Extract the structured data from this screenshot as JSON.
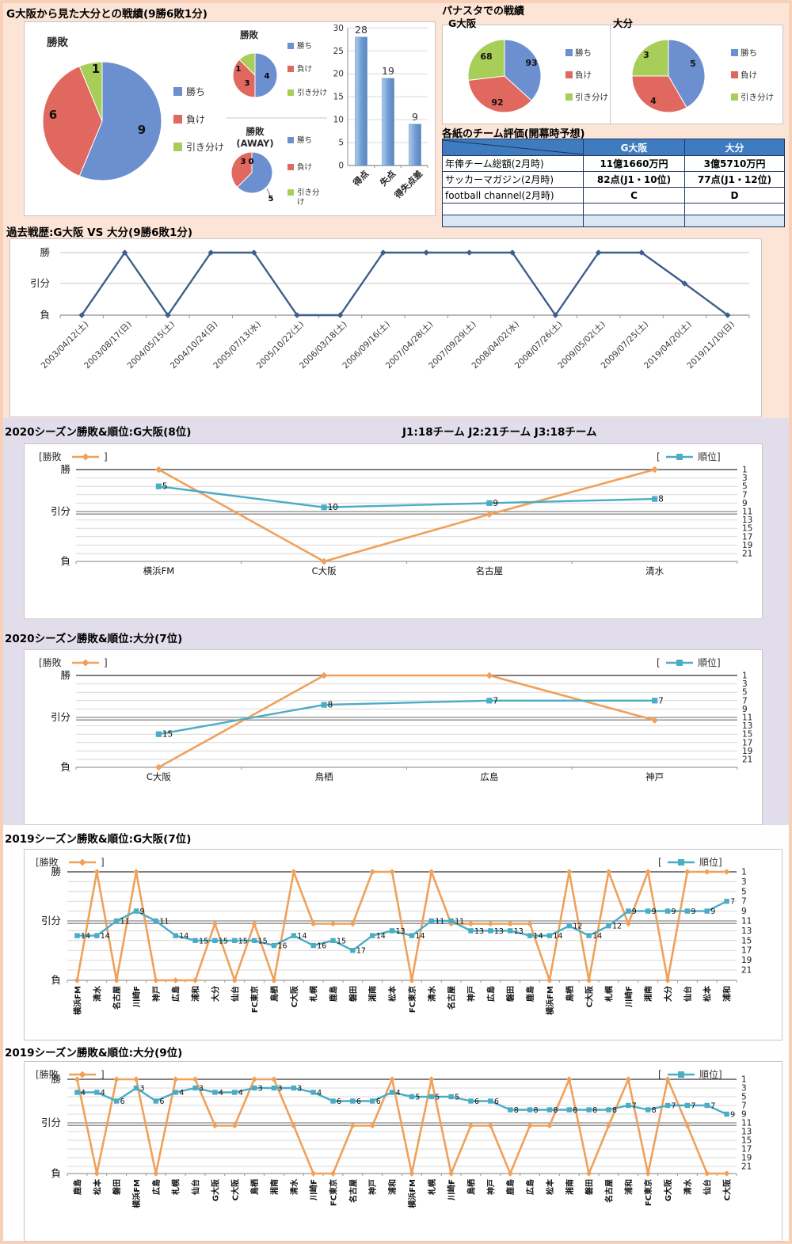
{
  "colors": {
    "pie_blue": "#6C8FD0",
    "pie_red": "#E0685F",
    "pie_green": "#A8CE5A",
    "bar_blue": "#6D9BD1",
    "bar_blue_light": "#AECBEC",
    "orange": "#EFA15B",
    "teal": "#4BACC6",
    "navy": "#3D5E8C",
    "table_header": "#3E7CBF",
    "table_row_tint": "#D9E7F5",
    "grid": "#D9D9D9",
    "grid_dark": "#7F7F7F",
    "bg_peach": "#FCE4D6",
    "bg_lavender": "#E2DDEA",
    "bg_white": "#FEFEFE",
    "frame": "#F7D0B7"
  },
  "sections": {
    "record_title": "G大阪から見た大分との戦績(9勝6敗1分)",
    "panasta_title": "パナスタでの戦績",
    "panasta_left": "G大阪",
    "panasta_right": "大分",
    "rank_ticks": [
      1,
      3,
      5,
      7,
      9,
      11,
      13,
      15,
      17,
      19,
      21
    ],
    "rank_left_labels": [
      "勝",
      "引分",
      "負"
    ]
  },
  "chart_data": [
    {
      "id": "pie_record_total",
      "type": "pie",
      "title": "勝敗",
      "labels": [
        "勝ち",
        "負け",
        "引き分け"
      ],
      "values": [
        9,
        6,
        1
      ]
    },
    {
      "id": "pie_record_home",
      "type": "pie",
      "title": "勝敗",
      "labels": [
        "勝ち",
        "負け",
        "引き分け"
      ],
      "values": [
        4,
        3,
        1
      ]
    },
    {
      "id": "pie_record_away",
      "type": "pie",
      "title": "勝敗(AWAY)",
      "title_lines": [
        "勝敗",
        "(AWAY)"
      ],
      "labels": [
        "勝ち",
        "負け",
        "引き分け"
      ],
      "values": [
        5,
        3,
        0
      ]
    },
    {
      "id": "bar_goals",
      "type": "bar",
      "categories": [
        "得点",
        "失点",
        "得失点差"
      ],
      "values": [
        28,
        19,
        9
      ],
      "ylim": [
        0,
        30
      ],
      "ystep": 5
    },
    {
      "id": "pie_panasta_gamba",
      "type": "pie",
      "team": "G大阪",
      "labels": [
        "勝ち",
        "負け",
        "引き分け"
      ],
      "values": [
        93,
        92,
        68
      ]
    },
    {
      "id": "pie_panasta_oita",
      "type": "pie",
      "team": "大分",
      "labels": [
        "勝ち",
        "負け",
        "引き分け"
      ],
      "values": [
        5,
        4,
        3
      ]
    },
    {
      "id": "eval_table",
      "type": "table",
      "title": "各紙のチーム評価(開幕時予想)",
      "columns": [
        "",
        "G大阪",
        "大分"
      ],
      "rows": [
        [
          "年俸チーム総額(2月時)",
          "11億1660万円",
          "3億5710万円"
        ],
        [
          "サッカーマガジン(2月時)",
          "82点(J1・10位)",
          "77点(J1・12位)"
        ],
        [
          "football channel(2月時)",
          "C",
          "D"
        ],
        [
          "",
          "",
          ""
        ],
        [
          "",
          "",
          ""
        ]
      ]
    },
    {
      "id": "history",
      "type": "line",
      "title": "過去戦歴:G大阪 VS 大分(9勝6敗1分)",
      "y_categories": [
        "勝",
        "引分",
        "負"
      ],
      "x": [
        "2003/04/12(土)",
        "2003/08/17(日)",
        "2004/05/15(土)",
        "2004/10/24(日)",
        "2005/07/13(水)",
        "2005/10/22(土)",
        "2006/03/18(土)",
        "2006/09/16(土)",
        "2007/04/28(土)",
        "2007/09/29(土)",
        "2008/04/02(水)",
        "2008/07/26(土)",
        "2009/05/02(土)",
        "2009/07/25(土)",
        "2019/04/20(土)",
        "2019/11/10(日)"
      ],
      "values": [
        "負",
        "勝",
        "負",
        "勝",
        "勝",
        "負",
        "負",
        "勝",
        "勝",
        "勝",
        "勝",
        "負",
        "勝",
        "勝",
        "引分",
        "負"
      ]
    },
    {
      "id": "rank_2020_gamba",
      "type": "line",
      "title": "2020シーズン勝敗&順位:G大阪(8位)",
      "note": "J1:18チーム  J2:21チーム  J3:18チーム",
      "legend": [
        "勝敗",
        "順位"
      ],
      "x": [
        "横浜FM",
        "C大阪",
        "名古屋",
        "清水"
      ],
      "series": [
        {
          "name": "勝敗",
          "values": [
            "勝",
            "負",
            "引分",
            "勝"
          ]
        },
        {
          "name": "順位",
          "values": [
            5,
            10,
            9,
            8
          ]
        }
      ],
      "right_axis_range": [
        1,
        21
      ]
    },
    {
      "id": "rank_2020_oita",
      "type": "line",
      "title": "2020シーズン勝敗&順位:大分(7位)",
      "legend": [
        "勝敗",
        "順位"
      ],
      "x": [
        "C大阪",
        "鳥栖",
        "広島",
        "神戸"
      ],
      "series": [
        {
          "name": "勝敗",
          "values": [
            "負",
            "勝",
            "勝",
            "引分"
          ]
        },
        {
          "name": "順位",
          "values": [
            15,
            8,
            7,
            7
          ]
        }
      ],
      "right_axis_range": [
        1,
        21
      ]
    },
    {
      "id": "rank_2019_gamba",
      "type": "line",
      "title": "2019シーズン勝敗&順位:G大阪(7位)",
      "legend": [
        "勝敗",
        "順位"
      ],
      "x": [
        "横浜FM",
        "清水",
        "名古屋",
        "川崎F",
        "神戸",
        "広島",
        "浦和",
        "大分",
        "仙台",
        "FC東京",
        "鳥栖",
        "C大阪",
        "札幌",
        "鹿島",
        "磐田",
        "湘南",
        "松本",
        "FC東京",
        "清水",
        "名古屋",
        "神戸",
        "広島",
        "磐田",
        "鹿島",
        "横浜FM",
        "鳥栖",
        "C大阪",
        "札幌",
        "川崎F",
        "湘南",
        "大分",
        "仙台",
        "松本",
        "浦和"
      ],
      "series": [
        {
          "name": "勝敗",
          "values": [
            "負",
            "勝",
            "負",
            "勝",
            "負",
            "負",
            "負",
            "引分",
            "負",
            "引分",
            "負",
            "勝",
            "引分",
            "引分",
            "引分",
            "勝",
            "勝",
            "負",
            "勝",
            "引分",
            "引分",
            "引分",
            "引分",
            "引分",
            "負",
            "勝",
            "負",
            "勝",
            "引分",
            "勝",
            "負",
            "勝",
            "勝",
            "勝"
          ]
        },
        {
          "name": "順位",
          "values": [
            14,
            14,
            11,
            9,
            11,
            14,
            15,
            15,
            15,
            15,
            16,
            14,
            16,
            15,
            17,
            14,
            13,
            14,
            11,
            11,
            13,
            13,
            13,
            14,
            14,
            12,
            14,
            12,
            9,
            9,
            9,
            9,
            9,
            7
          ]
        }
      ],
      "right_axis_range": [
        1,
        21
      ]
    },
    {
      "id": "rank_2019_oita",
      "type": "line",
      "title": "2019シーズン勝敗&順位:大分(9位)",
      "legend": [
        "勝敗",
        "順位"
      ],
      "x": [
        "鹿島",
        "松本",
        "磐田",
        "横浜FM",
        "広島",
        "札幌",
        "仙台",
        "G大阪",
        "C大阪",
        "鳥栖",
        "湘南",
        "清水",
        "川崎F",
        "FC東京",
        "名古屋",
        "神戸",
        "浦和",
        "横浜FM",
        "札幌",
        "川崎F",
        "鳥栖",
        "神戸",
        "鹿島",
        "広島",
        "松本",
        "湘南",
        "磐田",
        "名古屋",
        "浦和",
        "FC東京",
        "G大阪",
        "清水",
        "仙台",
        "C大阪"
      ],
      "series": [
        {
          "name": "勝敗",
          "values": [
            "勝",
            "負",
            "勝",
            "勝",
            "負",
            "勝",
            "勝",
            "引分",
            "引分",
            "勝",
            "勝",
            "引分",
            "負",
            "負",
            "引分",
            "引分",
            "勝",
            "負",
            "勝",
            "負",
            "引分",
            "引分",
            "負",
            "引分",
            "引分",
            "勝",
            "負",
            "引分",
            "勝",
            "負",
            "勝",
            "引分",
            "負",
            "負"
          ]
        },
        {
          "name": "順位",
          "values": [
            4,
            4,
            6,
            3,
            6,
            4,
            3,
            4,
            4,
            3,
            3,
            3,
            4,
            6,
            6,
            6,
            4,
            5,
            5,
            5,
            6,
            6,
            8,
            8,
            8,
            8,
            8,
            8,
            7,
            8,
            7,
            7,
            7,
            9
          ]
        }
      ],
      "right_axis_range": [
        1,
        21
      ]
    }
  ]
}
